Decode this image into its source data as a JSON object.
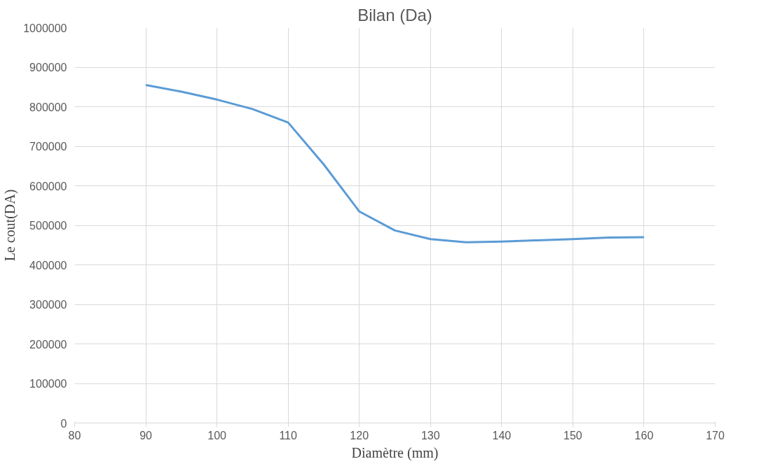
{
  "chart_data": {
    "type": "line",
    "title": "Bilan (Da)",
    "xlabel": "Diamètre (mm)",
    "ylabel": "Le cout(DA)",
    "x": [
      90,
      95,
      100,
      105,
      110,
      115,
      120,
      125,
      130,
      135,
      140,
      145,
      150,
      155,
      160
    ],
    "series": [
      {
        "color": "#5b9bd5",
        "values": [
          855000,
          838000,
          818000,
          794000,
          760000,
          654000,
          535000,
          487000,
          465000,
          457000,
          459000,
          462000,
          465000,
          469000,
          470000
        ]
      }
    ],
    "xlim": [
      80,
      170
    ],
    "xticks": [
      80,
      90,
      100,
      110,
      120,
      130,
      140,
      150,
      160,
      170
    ],
    "ylim": [
      0,
      1000000
    ],
    "yticks": [
      0,
      100000,
      200000,
      300000,
      400000,
      500000,
      600000,
      700000,
      800000,
      900000,
      1000000
    ],
    "grid": true,
    "marker": "none",
    "line_style": "solid"
  }
}
